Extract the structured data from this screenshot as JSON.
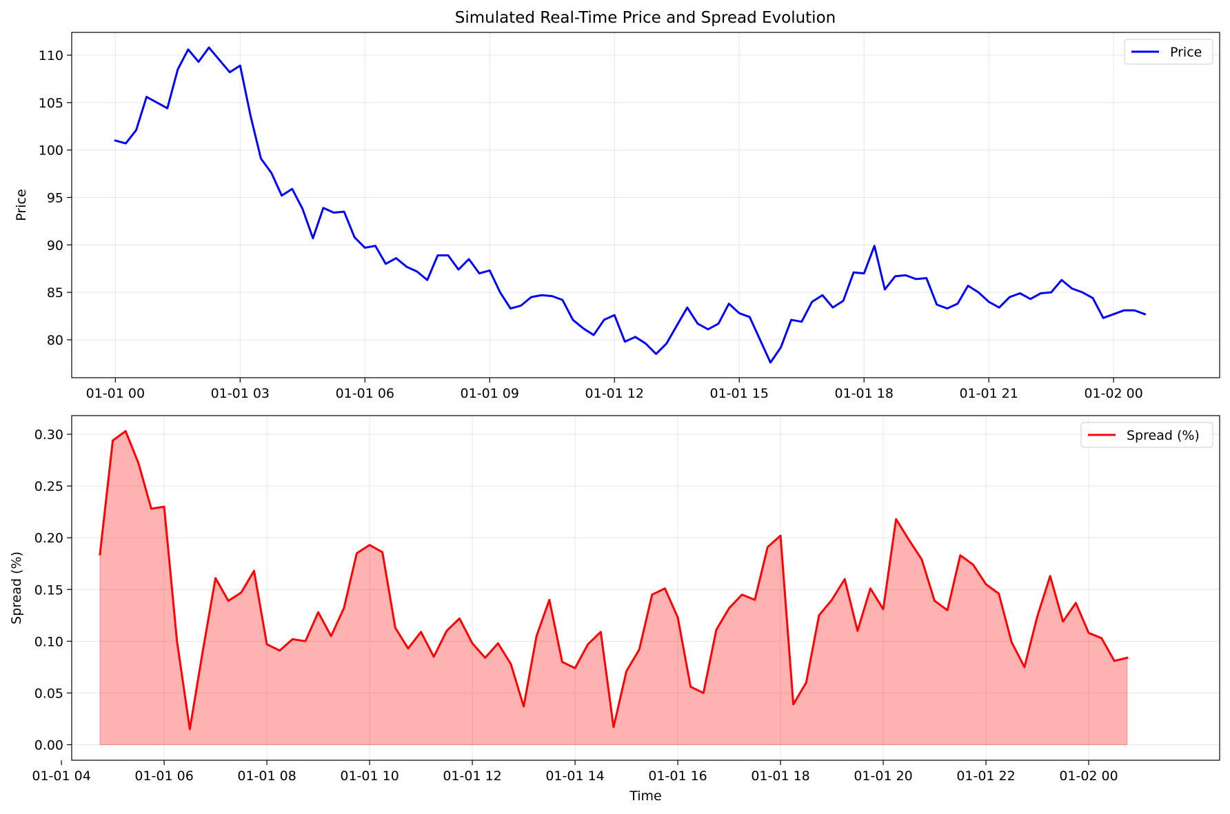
{
  "title": "Simulated Real-Time Price and Spread Evolution",
  "chart_data": [
    {
      "type": "line",
      "ylabel": "Price",
      "xlabel": "",
      "xlim": [
        "2023-12-31T22:57",
        "2024-01-02T02:33"
      ],
      "ylim": [
        76.0,
        112.4
      ],
      "xticks": [
        {
          "t": "2024-01-01T00:00",
          "label": "01-01 00"
        },
        {
          "t": "2024-01-01T03:00",
          "label": "01-01 03"
        },
        {
          "t": "2024-01-01T06:00",
          "label": "01-01 06"
        },
        {
          "t": "2024-01-01T09:00",
          "label": "01-01 09"
        },
        {
          "t": "2024-01-01T12:00",
          "label": "01-01 12"
        },
        {
          "t": "2024-01-01T15:00",
          "label": "01-01 15"
        },
        {
          "t": "2024-01-01T18:00",
          "label": "01-01 18"
        },
        {
          "t": "2024-01-01T21:00",
          "label": "01-01 21"
        },
        {
          "t": "2024-01-02T00:00",
          "label": "01-02 00"
        }
      ],
      "yticks": [
        {
          "v": 80,
          "label": "80"
        },
        {
          "v": 85,
          "label": "85"
        },
        {
          "v": 90,
          "label": "90"
        },
        {
          "v": 95,
          "label": "95"
        },
        {
          "v": 100,
          "label": "100"
        },
        {
          "v": 105,
          "label": "105"
        },
        {
          "v": 110,
          "label": "110"
        }
      ],
      "grid": true,
      "legend_position": "upper right",
      "series": [
        {
          "name": "Price",
          "color": "#0000ff",
          "x_start": "2024-01-01T00:00",
          "x_step_minutes": 15,
          "values": [
            101.0,
            100.7,
            102.1,
            105.6,
            105.0,
            104.4,
            108.5,
            110.6,
            109.3,
            110.8,
            109.5,
            108.2,
            108.9,
            103.6,
            99.1,
            97.6,
            95.2,
            95.9,
            93.8,
            90.7,
            93.9,
            93.4,
            93.5,
            90.8,
            89.7,
            89.9,
            88.0,
            88.6,
            87.7,
            87.2,
            86.3,
            88.9,
            88.9,
            87.4,
            88.5,
            87.0,
            87.3,
            85.0,
            83.3,
            83.6,
            84.5,
            84.7,
            84.6,
            84.2,
            82.1,
            81.2,
            80.5,
            82.1,
            82.6,
            79.8,
            80.3,
            79.6,
            78.5,
            79.6,
            81.5,
            83.4,
            81.7,
            81.1,
            81.7,
            83.8,
            82.8,
            82.4,
            80.0,
            77.6,
            79.2,
            82.1,
            81.9,
            84.0,
            84.7,
            83.4,
            84.1,
            87.1,
            87.0,
            89.9,
            85.3,
            86.7,
            86.8,
            86.4,
            86.5,
            83.7,
            83.3,
            83.8,
            85.7,
            85.0,
            84.0,
            83.4,
            84.5,
            84.9,
            84.3,
            84.9,
            85.0,
            86.3,
            85.4,
            85.0,
            84.4,
            82.3,
            82.7,
            83.1,
            83.1,
            82.7
          ]
        }
      ]
    },
    {
      "type": "area",
      "ylabel": "Spread (%)",
      "xlabel": "Time",
      "xlim": [
        "2024-01-01T04:12",
        "2024-01-02T02:33"
      ],
      "ylim": [
        -0.015,
        0.318
      ],
      "xticks": [
        {
          "t": "2024-01-01T04:00",
          "label": "01-01 04"
        },
        {
          "t": "2024-01-01T06:00",
          "label": "01-01 06"
        },
        {
          "t": "2024-01-01T08:00",
          "label": "01-01 08"
        },
        {
          "t": "2024-01-01T10:00",
          "label": "01-01 10"
        },
        {
          "t": "2024-01-01T12:00",
          "label": "01-01 12"
        },
        {
          "t": "2024-01-01T14:00",
          "label": "01-01 14"
        },
        {
          "t": "2024-01-01T16:00",
          "label": "01-01 16"
        },
        {
          "t": "2024-01-01T18:00",
          "label": "01-01 18"
        },
        {
          "t": "2024-01-01T20:00",
          "label": "01-01 20"
        },
        {
          "t": "2024-01-01T22:00",
          "label": "01-01 22"
        },
        {
          "t": "2024-01-02T00:00",
          "label": "01-02 00"
        }
      ],
      "yticks": [
        {
          "v": 0.0,
          "label": "0.00"
        },
        {
          "v": 0.05,
          "label": "0.05"
        },
        {
          "v": 0.1,
          "label": "0.10"
        },
        {
          "v": 0.15,
          "label": "0.15"
        },
        {
          "v": 0.2,
          "label": "0.20"
        },
        {
          "v": 0.25,
          "label": "0.25"
        },
        {
          "v": 0.3,
          "label": "0.30"
        }
      ],
      "grid": true,
      "legend_position": "upper right",
      "series": [
        {
          "name": "Spread (%)",
          "color": "#ff0000",
          "fill_color": "#ff0000",
          "fill_opacity": 0.3,
          "x_start": "2024-01-01T04:45",
          "x_step_minutes": 15,
          "values": [
            0.184,
            0.294,
            0.303,
            0.272,
            0.228,
            0.23,
            0.1,
            0.015,
            0.09,
            0.161,
            0.139,
            0.147,
            0.168,
            0.097,
            0.091,
            0.102,
            0.1,
            0.128,
            0.105,
            0.132,
            0.185,
            0.193,
            0.186,
            0.113,
            0.093,
            0.109,
            0.085,
            0.11,
            0.122,
            0.098,
            0.084,
            0.098,
            0.078,
            0.037,
            0.105,
            0.14,
            0.08,
            0.074,
            0.097,
            0.109,
            0.017,
            0.071,
            0.092,
            0.145,
            0.151,
            0.123,
            0.056,
            0.05,
            0.111,
            0.132,
            0.145,
            0.14,
            0.191,
            0.202,
            0.039,
            0.06,
            0.125,
            0.14,
            0.16,
            0.11,
            0.151,
            0.131,
            0.218,
            0.198,
            0.179,
            0.139,
            0.13,
            0.183,
            0.174,
            0.155,
            0.146,
            0.099,
            0.075,
            0.124,
            0.163,
            0.119,
            0.137,
            0.108,
            0.103,
            0.081,
            0.084
          ]
        }
      ]
    }
  ]
}
